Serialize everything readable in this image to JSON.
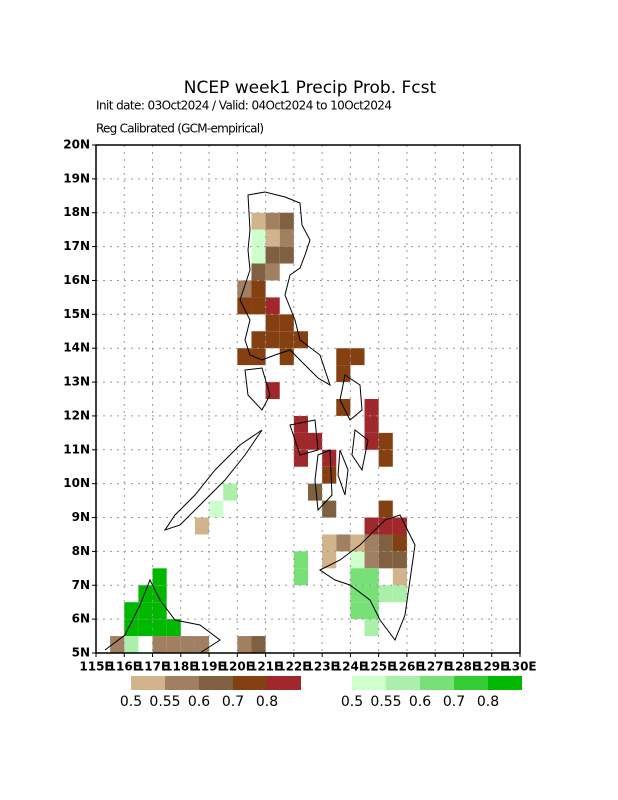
{
  "title": "NCEP week1 Precip Prob. Fcst",
  "subtitle": "Init date: 03Oct2024 / Valid: 04Oct2024 to 10Oct2024",
  "note": "Reg Calibrated (GCM-empirical)",
  "map": {
    "xlim": [
      115,
      130
    ],
    "ylim": [
      5,
      20
    ],
    "grid": true,
    "xticks": [
      {
        "value": 115,
        "label": "115E"
      },
      {
        "value": 116,
        "label": "116E"
      },
      {
        "value": 117,
        "label": "117E"
      },
      {
        "value": 118,
        "label": "118E"
      },
      {
        "value": 119,
        "label": "119E"
      },
      {
        "value": 120,
        "label": "120E"
      },
      {
        "value": 121,
        "label": "121E"
      },
      {
        "value": 122,
        "label": "122E"
      },
      {
        "value": 123,
        "label": "123E"
      },
      {
        "value": 124,
        "label": "124E"
      },
      {
        "value": 125,
        "label": "125E"
      },
      {
        "value": 126,
        "label": "126E"
      },
      {
        "value": 127,
        "label": "127E"
      },
      {
        "value": 128,
        "label": "128E"
      },
      {
        "value": 129,
        "label": "129E"
      },
      {
        "value": 130,
        "label": "130E"
      }
    ],
    "yticks": [
      {
        "value": 5,
        "label": "5N"
      },
      {
        "value": 6,
        "label": "6N"
      },
      {
        "value": 7,
        "label": "7N"
      },
      {
        "value": 8,
        "label": "8N"
      },
      {
        "value": 9,
        "label": "9N"
      },
      {
        "value": 10,
        "label": "10N"
      },
      {
        "value": 11,
        "label": "11N"
      },
      {
        "value": 12,
        "label": "12N"
      },
      {
        "value": 13,
        "label": "13N"
      },
      {
        "value": 14,
        "label": "14N"
      },
      {
        "value": 15,
        "label": "15N"
      },
      {
        "value": 16,
        "label": "16N"
      },
      {
        "value": 17,
        "label": "17N"
      },
      {
        "value": 18,
        "label": "18N"
      },
      {
        "value": 19,
        "label": "19N"
      },
      {
        "value": 20,
        "label": "20N"
      }
    ],
    "cells": [
      [
        120.5,
        17.5,
        0
      ],
      [
        121,
        17.5,
        1
      ],
      [
        121.5,
        17.5,
        2
      ],
      [
        120.5,
        17,
        5
      ],
      [
        121,
        17,
        0
      ],
      [
        121.5,
        17,
        1
      ],
      [
        120.5,
        16.5,
        5
      ],
      [
        121,
        16.5,
        2
      ],
      [
        121.5,
        16.5,
        2
      ],
      [
        120.5,
        16,
        2
      ],
      [
        121,
        16,
        1
      ],
      [
        120,
        15.5,
        1
      ],
      [
        120.5,
        15.5,
        3
      ],
      [
        120,
        15,
        3
      ],
      [
        120.5,
        15,
        3
      ],
      [
        121,
        15,
        4
      ],
      [
        121,
        14.5,
        3
      ],
      [
        121.5,
        14.5,
        3
      ],
      [
        120.5,
        14,
        3
      ],
      [
        121,
        14,
        3
      ],
      [
        121.5,
        14,
        3
      ],
      [
        122,
        14,
        3
      ],
      [
        120,
        13.5,
        3
      ],
      [
        120.5,
        13.5,
        3
      ],
      [
        121.5,
        13.5,
        3
      ],
      [
        123.5,
        13.5,
        3
      ],
      [
        124,
        13.5,
        3
      ],
      [
        123.5,
        13,
        3
      ],
      [
        121,
        12.5,
        4
      ],
      [
        123.5,
        12,
        3
      ],
      [
        124.5,
        12,
        4
      ],
      [
        124.5,
        11.5,
        4
      ],
      [
        122,
        11.5,
        4
      ],
      [
        122,
        11,
        4
      ],
      [
        122.5,
        11,
        4
      ],
      [
        124.5,
        11,
        4
      ],
      [
        125,
        11,
        3
      ],
      [
        122,
        10.5,
        4
      ],
      [
        123,
        10.5,
        4
      ],
      [
        125,
        10.5,
        3
      ],
      [
        123,
        10,
        3
      ],
      [
        122.5,
        9.5,
        2
      ],
      [
        123,
        9,
        2
      ],
      [
        125,
        9,
        3
      ],
      [
        124.5,
        8.5,
        4
      ],
      [
        125,
        8.5,
        4
      ],
      [
        125.5,
        8.5,
        4
      ],
      [
        123,
        8,
        0
      ],
      [
        123.5,
        8,
        1
      ],
      [
        124,
        8,
        0
      ],
      [
        124.5,
        8,
        1
      ],
      [
        125,
        8,
        2
      ],
      [
        125.5,
        8,
        3
      ],
      [
        122,
        7.5,
        7
      ],
      [
        123,
        7.5,
        0
      ],
      [
        124,
        7.5,
        5
      ],
      [
        124.5,
        7.5,
        1
      ],
      [
        125,
        7.5,
        2
      ],
      [
        125.5,
        7.5,
        2
      ],
      [
        122,
        7,
        7
      ],
      [
        124,
        7,
        7
      ],
      [
        124.5,
        7,
        7
      ],
      [
        125.5,
        7,
        0
      ],
      [
        124,
        6.5,
        7
      ],
      [
        124.5,
        6.5,
        7
      ],
      [
        125,
        6.5,
        6
      ],
      [
        125.5,
        6.5,
        6
      ],
      [
        124,
        6,
        7
      ],
      [
        124.5,
        6,
        7
      ],
      [
        124.5,
        5.5,
        6
      ],
      [
        117,
        7,
        9
      ],
      [
        116.5,
        6.5,
        9
      ],
      [
        117,
        6.5,
        9
      ],
      [
        116,
        6,
        9
      ],
      [
        116.5,
        6,
        9
      ],
      [
        117,
        6,
        9
      ],
      [
        116,
        5.5,
        9
      ],
      [
        116.5,
        5.5,
        9
      ],
      [
        117,
        5.5,
        9
      ],
      [
        117.5,
        5.5,
        9
      ],
      [
        116,
        5,
        6
      ],
      [
        115.5,
        5,
        1
      ],
      [
        117,
        5,
        1
      ],
      [
        117.5,
        5,
        1
      ],
      [
        118,
        5,
        1
      ],
      [
        118.5,
        5,
        1
      ],
      [
        120,
        5,
        1
      ],
      [
        118.5,
        8.5,
        0
      ],
      [
        119,
        9,
        5
      ],
      [
        119.5,
        9.5,
        6
      ],
      [
        120.5,
        5,
        2
      ]
    ]
  },
  "legend": [
    {
      "colors": [
        "#d2b48c",
        "#a08060",
        "#7f6040",
        "#844010",
        "#a0282d"
      ],
      "thresholds": [
        0.5,
        0.55,
        0.6,
        0.7,
        0.8
      ]
    },
    {
      "colors": [
        "#ccffcc",
        "#aaf0aa",
        "#77e077",
        "#33cc33",
        "#00b800"
      ],
      "thresholds": [
        0.5,
        0.55,
        0.6,
        0.7,
        0.8
      ]
    }
  ]
}
